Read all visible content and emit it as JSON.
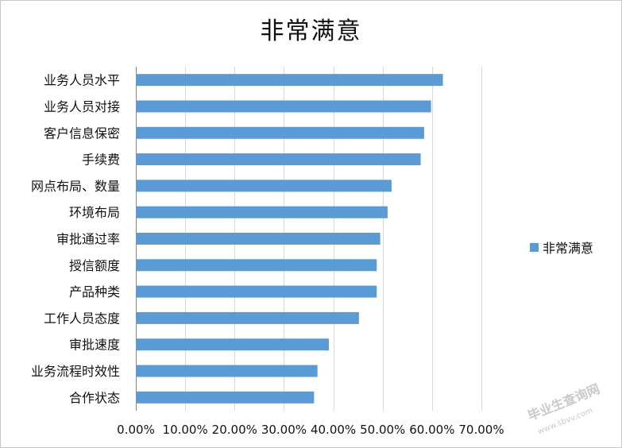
{
  "chart_data": {
    "type": "bar",
    "orientation": "horizontal",
    "title": "非常满意",
    "categories": [
      "业务人员水平",
      "业务人员对接",
      "客户信息保密",
      "手续费",
      "网点布局、数量",
      "环境布局",
      "审批通过率",
      "授信额度",
      "产品种类",
      "工作人员态度",
      "审批速度",
      "业务流程时效性",
      "合作状态"
    ],
    "series": [
      {
        "name": "非常满意",
        "values": [
          0.622,
          0.598,
          0.584,
          0.577,
          0.518,
          0.51,
          0.495,
          0.488,
          0.488,
          0.452,
          0.391,
          0.368,
          0.361
        ]
      }
    ],
    "xlim": [
      0,
      0.7
    ],
    "xticks": [
      "0.00%",
      "10.00%",
      "20.00%",
      "30.00%",
      "40.00%",
      "50.00%",
      "60.00%",
      "70.00%"
    ],
    "grid": "vertical",
    "legend": "right",
    "bar_color": "#5b9bd5"
  },
  "watermark": {
    "text": "毕业生查询网",
    "url": "www.sbvv.com"
  }
}
